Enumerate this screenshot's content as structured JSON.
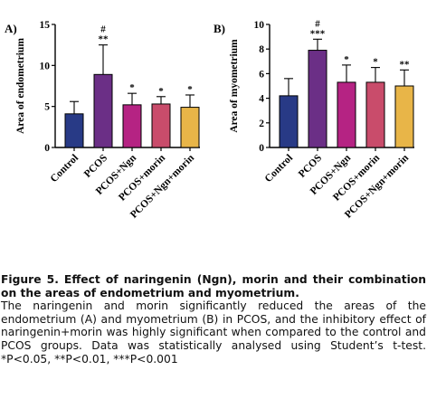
{
  "chart_data": [
    {
      "panel_label": "A)",
      "type": "bar",
      "categories": [
        "Control",
        "PCOS",
        "PCOS+Ngn",
        "PCOS+morin",
        "PCOS+Ngn+morin"
      ],
      "values": [
        4.1,
        8.9,
        5.2,
        5.3,
        4.9
      ],
      "errors": [
        1.5,
        3.6,
        1.4,
        0.9,
        1.5
      ],
      "annotations": [
        "",
        "#\n**",
        "*",
        "*",
        "*"
      ],
      "ylabel": "Area of endometrium",
      "ylim": [
        0,
        15
      ],
      "yticks": [
        0,
        5,
        10,
        15
      ],
      "colors": [
        "#283a86",
        "#6b2f86",
        "#b52383",
        "#c94c6b",
        "#e8b548"
      ],
      "grid": false
    },
    {
      "panel_label": "B)",
      "type": "bar",
      "categories": [
        "Control",
        "PCOS",
        "PCOS+Ngn",
        "PCOS+morin",
        "PCOS+Ngn+morin"
      ],
      "values": [
        4.2,
        7.9,
        5.3,
        5.3,
        5.0
      ],
      "errors": [
        1.4,
        0.9,
        1.4,
        1.2,
        1.3
      ],
      "annotations": [
        "",
        "#\n***",
        "*",
        "*",
        "**"
      ],
      "ylabel": "Area of myometrium",
      "ylim": [
        0,
        10
      ],
      "yticks": [
        0,
        2,
        4,
        6,
        8,
        10
      ],
      "colors": [
        "#283a86",
        "#6b2f86",
        "#b52383",
        "#c94c6b",
        "#e8b548"
      ],
      "grid": false
    }
  ],
  "caption": {
    "title": "Figure 5. Effect of naringenin (Ngn), morin and their combination on the areas of endometrium and myometrium.",
    "body": "The naringenin and morin significantly reduced the areas of the endometrium (A) and myometrium (B) in PCOS, and the inhibitory effect of naringenin+morin was highly significant when compared to the control and PCOS groups. Data was statistically analysed using Student’s t-test. *P<0.05, **P<0.01, ***P<0.001"
  }
}
